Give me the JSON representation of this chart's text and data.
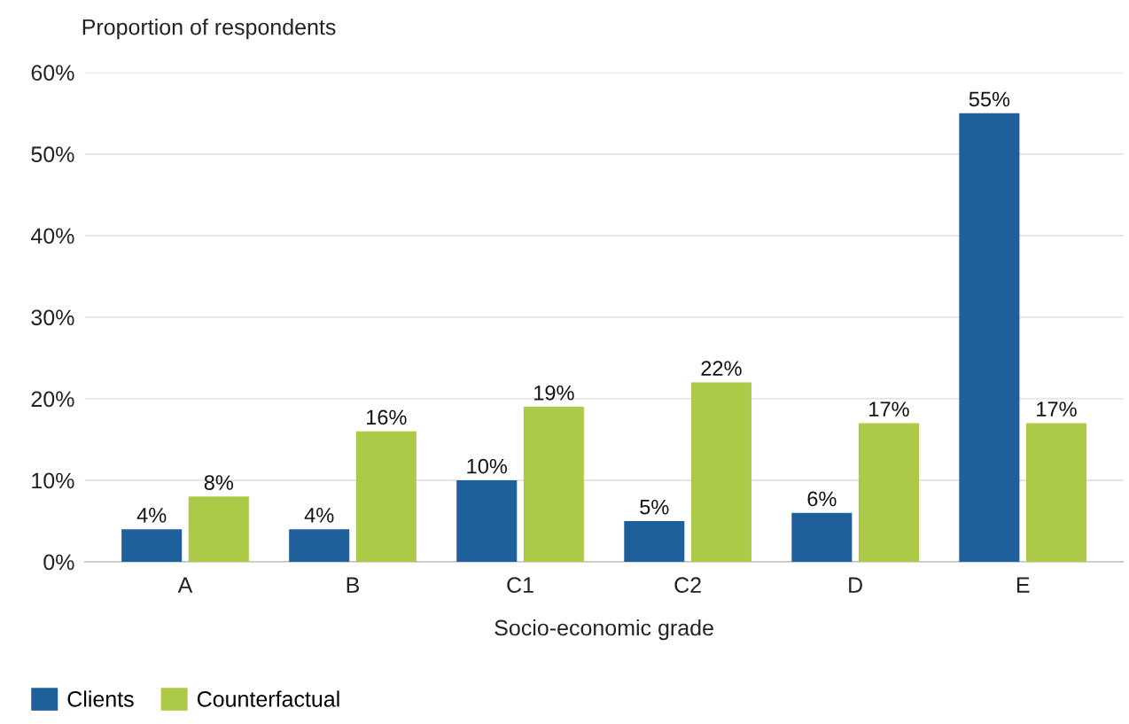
{
  "chart_data": {
    "type": "bar",
    "ylabel": "Proportion of respondents",
    "xlabel": "Socio-economic grade",
    "categories": [
      "A",
      "B",
      "C1",
      "C2",
      "D",
      "E"
    ],
    "series": [
      {
        "name": "Clients",
        "color": "#1f5f9b",
        "values": [
          4,
          4,
          10,
          5,
          6,
          55
        ],
        "value_labels": [
          "4%",
          "4%",
          "10%",
          "5%",
          "6%",
          "55%"
        ]
      },
      {
        "name": "Counterfactual",
        "color": "#adc948",
        "values": [
          8,
          16,
          19,
          22,
          17,
          17
        ],
        "value_labels": [
          "8%",
          "16%",
          "19%",
          "22%",
          "17%",
          "17%"
        ]
      }
    ],
    "ylim": [
      0,
      60
    ],
    "yticks": [
      {
        "value": 0,
        "label": "0%"
      },
      {
        "value": 10,
        "label": "10%"
      },
      {
        "value": 20,
        "label": "20%"
      },
      {
        "value": 30,
        "label": "30%"
      },
      {
        "value": 40,
        "label": "40%"
      },
      {
        "value": 50,
        "label": "50%"
      },
      {
        "value": 60,
        "label": "60%"
      }
    ],
    "grid": "y",
    "legend": "bottom"
  }
}
